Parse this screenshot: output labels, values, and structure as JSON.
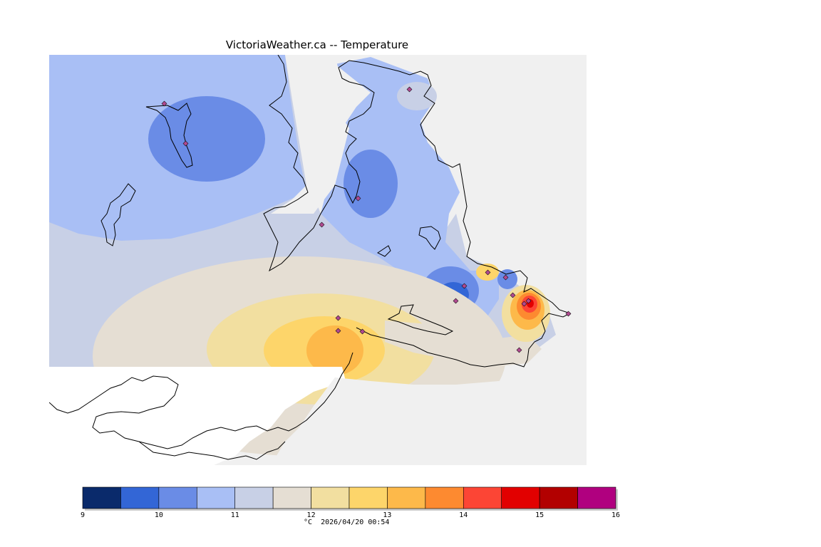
{
  "title": "VictoriaWeather.ca -- Temperature",
  "legend": {
    "bins": [
      {
        "color": "#0a2a6b"
      },
      {
        "color": "#3366d6"
      },
      {
        "color": "#6a8ce6"
      },
      {
        "color": "#a9bff5"
      },
      {
        "color": "#c8d0e6"
      },
      {
        "color": "#e5ded3"
      },
      {
        "color": "#f2dfa0"
      },
      {
        "color": "#fdd56a"
      },
      {
        "color": "#fdb94a"
      },
      {
        "color": "#fd8a30"
      },
      {
        "color": "#fc4535"
      },
      {
        "color": "#e20000"
      },
      {
        "color": "#b20000"
      },
      {
        "color": "#b0007f"
      }
    ],
    "tick_labels": [
      "9",
      "10",
      "11",
      "12",
      "13",
      "14",
      "15",
      "16"
    ]
  },
  "footer": {
    "unit": "°C",
    "timestamp": "2026/04/20 00:54"
  },
  "colors": {
    "land": "#f0f0f0",
    "water": "#ffffff",
    "coastline": "#000000",
    "station_marker": "#b04a90"
  }
}
